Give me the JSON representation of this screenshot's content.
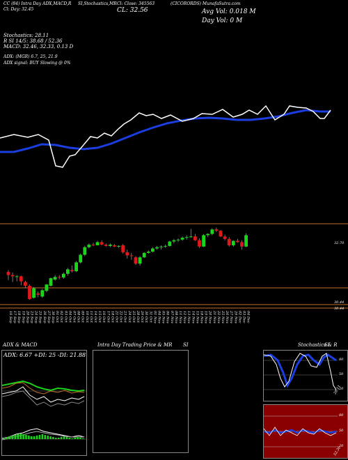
{
  "header": {
    "left_line1": "CC (84) Intra Day ADX,MACD,R",
    "left_line2": "Cl: Day: 32.45",
    "mid_line1": "SI,Stochastics,MR",
    "right_top": "Cl: Close: 345563",
    "right_bottom": "CL: 32.56",
    "ticker": "(CICORORDS) MunafaSutra.com",
    "avg_vol": "Avg Vol: 0.018  M",
    "day_vol": "Day Vol: 0   M"
  },
  "indicators": {
    "stoch": "Stochastics: 28.11",
    "rsi": "R              SI 14/5: 38.68 / 52.36",
    "macd": "MACD: 32.46, 32.33, 0.13  D",
    "adx": "ADX:                                    (MGR) 6.7, 25, 21.9",
    "adx_signal": "ADX  signal:                          BUY Slowing @ 0%"
  },
  "price_labels": {
    "top": "32.70",
    "low1": "30.44",
    "low2": "30.44"
  },
  "dates": [
    "16 Sep",
    "17 Sep",
    "18 Sep",
    "19 Sep",
    "20 Sep",
    "23 Sep",
    "24 Sep",
    "25 Sep",
    "26 Sep",
    "27 Sep",
    "30 Sep",
    "01 Oct",
    "02 Oct",
    "03 Oct",
    "04 Oct",
    "07 Oct",
    "08 Oct",
    "09 Oct",
    "10 Oct",
    "11 Oct",
    "14 Oct",
    "15 Oct",
    "16 Oct",
    "17 Oct",
    "18 Oct",
    "21 Oct",
    "22 Oct",
    "23 Oct",
    "24 Oct",
    "25 Oct",
    "28 Oct",
    "29 Oct",
    "30 Oct",
    "31 Oct",
    "01 Nov",
    "04 Nov",
    "05 Nov",
    "06 Nov",
    "07 Nov",
    "08 Nov",
    "11 Nov",
    "12 Nov",
    "13 Nov",
    "14 Nov",
    "15 Nov",
    "18 Nov",
    "19 Nov",
    "20 Nov",
    "21 Nov",
    "22 Nov",
    "25 Nov",
    "26 Nov",
    "27 Nov",
    "29 Nov",
    "02 Dec",
    "03 Dec",
    "04 Dec"
  ],
  "panels": {
    "adx_title": "ADX  & MACD",
    "adx_text": "ADX: 6.67  +DI: 25  -DI: 21.88",
    "intraday_title": "Intra  Day Trading Price  & MR",
    "intraday_si": "SI",
    "stoch_title": "Stochastics & R",
    "stoch_si": "SI",
    "stoch_ticks": [
      "80",
      "50",
      "20"
    ],
    "stoch_value": "28.11",
    "rsi_ticks": [
      "80",
      "50",
      "20"
    ],
    "rsi_value": "52.36"
  },
  "colors": {
    "up": "#19d619",
    "down": "#e01818",
    "ema": "#1b3ee0",
    "price_line": "#ffffff",
    "orange_line": "#c0702a",
    "stoch_bg": "#000",
    "rsi_bg": "#8a0000"
  },
  "chart_data": {
    "type": "candlestick",
    "candles": [
      {
        "o": 31.4,
        "h": 31.46,
        "l": 31.14,
        "c": 31.3
      },
      {
        "o": 31.3,
        "h": 31.38,
        "l": 31.08,
        "c": 31.26
      },
      {
        "o": 31.26,
        "h": 31.3,
        "l": 31.1,
        "c": 31.26
      },
      {
        "o": 31.26,
        "h": 31.28,
        "l": 30.98,
        "c": 31.1
      },
      {
        "o": 31.08,
        "h": 31.12,
        "l": 30.9,
        "c": 30.96
      },
      {
        "o": 30.96,
        "h": 31.0,
        "l": 30.52,
        "c": 30.54
      },
      {
        "o": 30.58,
        "h": 30.92,
        "l": 30.56,
        "c": 30.88
      },
      {
        "o": 30.72,
        "h": 30.78,
        "l": 30.6,
        "c": 30.68
      },
      {
        "o": 30.62,
        "h": 30.86,
        "l": 30.58,
        "c": 30.82
      },
      {
        "o": 30.8,
        "h": 31.02,
        "l": 30.76,
        "c": 31.0
      },
      {
        "o": 30.96,
        "h": 31.22,
        "l": 30.94,
        "c": 31.2
      },
      {
        "o": 31.16,
        "h": 31.3,
        "l": 31.12,
        "c": 31.24
      },
      {
        "o": 31.24,
        "h": 31.3,
        "l": 31.16,
        "c": 31.22
      },
      {
        "o": 31.22,
        "h": 31.38,
        "l": 31.18,
        "c": 31.34
      },
      {
        "o": 31.34,
        "h": 31.52,
        "l": 31.28,
        "c": 31.48
      },
      {
        "o": 31.46,
        "h": 31.6,
        "l": 31.38,
        "c": 31.42
      },
      {
        "o": 31.42,
        "h": 31.74,
        "l": 31.4,
        "c": 31.7
      },
      {
        "o": 31.7,
        "h": 31.98,
        "l": 31.66,
        "c": 31.94
      },
      {
        "o": 31.94,
        "h": 32.22,
        "l": 31.9,
        "c": 32.18
      },
      {
        "o": 32.18,
        "h": 32.3,
        "l": 32.14,
        "c": 32.26
      },
      {
        "o": 32.26,
        "h": 32.32,
        "l": 32.22,
        "c": 32.24
      },
      {
        "o": 32.24,
        "h": 32.38,
        "l": 32.24,
        "c": 32.34
      },
      {
        "o": 32.34,
        "h": 32.4,
        "l": 32.24,
        "c": 32.26
      },
      {
        "o": 32.26,
        "h": 32.3,
        "l": 32.2,
        "c": 32.22
      },
      {
        "o": 32.22,
        "h": 32.3,
        "l": 32.18,
        "c": 32.26
      },
      {
        "o": 32.24,
        "h": 32.28,
        "l": 32.18,
        "c": 32.2
      },
      {
        "o": 32.2,
        "h": 32.24,
        "l": 32.16,
        "c": 32.22
      },
      {
        "o": 32.24,
        "h": 32.28,
        "l": 31.98,
        "c": 32.02
      },
      {
        "o": 32.02,
        "h": 32.1,
        "l": 31.82,
        "c": 31.92
      },
      {
        "o": 31.92,
        "h": 32.0,
        "l": 31.78,
        "c": 31.9
      },
      {
        "o": 31.86,
        "h": 31.9,
        "l": 31.62,
        "c": 31.66
      },
      {
        "o": 31.66,
        "h": 31.9,
        "l": 31.6,
        "c": 31.86
      },
      {
        "o": 31.86,
        "h": 32.02,
        "l": 31.84,
        "c": 32.0
      },
      {
        "o": 32.0,
        "h": 32.08,
        "l": 31.98,
        "c": 32.04
      },
      {
        "o": 32.04,
        "h": 32.18,
        "l": 32.02,
        "c": 32.14
      },
      {
        "o": 32.14,
        "h": 32.22,
        "l": 32.1,
        "c": 32.18
      },
      {
        "o": 32.18,
        "h": 32.24,
        "l": 32.1,
        "c": 32.2
      },
      {
        "o": 32.2,
        "h": 32.26,
        "l": 32.16,
        "c": 32.22
      },
      {
        "o": 32.22,
        "h": 32.38,
        "l": 32.2,
        "c": 32.36
      },
      {
        "o": 32.36,
        "h": 32.44,
        "l": 32.3,
        "c": 32.4
      },
      {
        "o": 32.4,
        "h": 32.46,
        "l": 32.34,
        "c": 32.42
      },
      {
        "o": 32.42,
        "h": 32.52,
        "l": 32.38,
        "c": 32.48
      },
      {
        "o": 32.48,
        "h": 32.56,
        "l": 32.42,
        "c": 32.5
      },
      {
        "o": 32.5,
        "h": 32.76,
        "l": 32.48,
        "c": 32.52
      },
      {
        "o": 32.52,
        "h": 32.6,
        "l": 32.38,
        "c": 32.4
      },
      {
        "o": 32.4,
        "h": 32.46,
        "l": 32.16,
        "c": 32.2
      },
      {
        "o": 32.2,
        "h": 32.6,
        "l": 32.18,
        "c": 32.56
      },
      {
        "o": 32.56,
        "h": 32.62,
        "l": 32.5,
        "c": 32.6
      },
      {
        "o": 32.6,
        "h": 32.78,
        "l": 32.56,
        "c": 32.74
      },
      {
        "o": 32.74,
        "h": 32.8,
        "l": 32.66,
        "c": 32.7
      },
      {
        "o": 32.7,
        "h": 32.72,
        "l": 32.5,
        "c": 32.52
      },
      {
        "o": 32.52,
        "h": 32.58,
        "l": 32.4,
        "c": 32.44
      },
      {
        "o": 32.44,
        "h": 32.5,
        "l": 32.2,
        "c": 32.24
      },
      {
        "o": 32.24,
        "h": 32.4,
        "l": 32.2,
        "c": 32.38
      },
      {
        "o": 32.38,
        "h": 32.44,
        "l": 32.32,
        "c": 32.34
      },
      {
        "o": 32.34,
        "h": 32.4,
        "l": 32.1,
        "c": 32.2
      },
      {
        "o": 32.2,
        "h": 32.62,
        "l": 32.18,
        "c": 32.56
      }
    ],
    "ymin": 30.3,
    "ymax": 32.9
  }
}
